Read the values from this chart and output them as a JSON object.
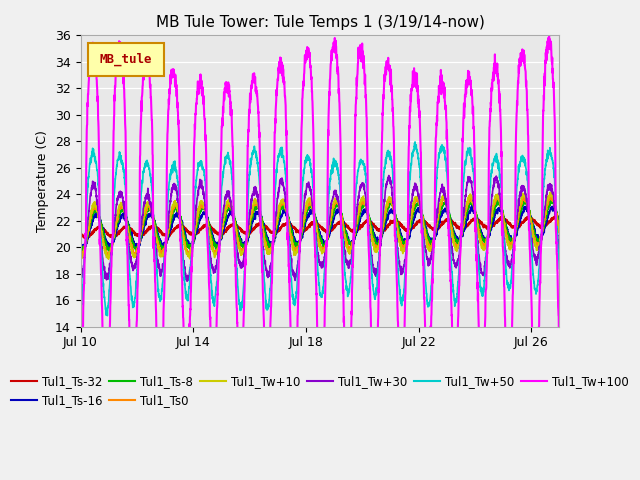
{
  "title": "MB Tule Tower: Tule Temps 1 (3/19/14-now)",
  "ylabel": "Temperature (C)",
  "xlabel": "",
  "ylim": [
    14,
    36
  ],
  "yticks": [
    14,
    16,
    18,
    20,
    22,
    24,
    26,
    28,
    30,
    32,
    34,
    36
  ],
  "xlim_start": 0,
  "xlim_end": 17,
  "xtick_positions": [
    0,
    4,
    8,
    12,
    16
  ],
  "xtick_labels": [
    "Jul 10",
    "Jul 14",
    "Jul 18",
    "Jul 22",
    "Jul 26"
  ],
  "background_color": "#e8e8e8",
  "plot_bg_color": "#e8e8e8",
  "fig_bg_color": "#f0f0f0",
  "series": [
    {
      "label": "Tul1_Ts-32",
      "color": "#cc0000",
      "lw": 1.5
    },
    {
      "label": "Tul1_Ts-16",
      "color": "#0000bb",
      "lw": 1.2
    },
    {
      "label": "Tul1_Ts-8",
      "color": "#00bb00",
      "lw": 1.2
    },
    {
      "label": "Tul1_Ts0",
      "color": "#ff8800",
      "lw": 1.2
    },
    {
      "label": "Tul1_Tw+10",
      "color": "#cccc00",
      "lw": 1.2
    },
    {
      "label": "Tul1_Tw+30",
      "color": "#8800cc",
      "lw": 1.2
    },
    {
      "label": "Tul1_Tw+50",
      "color": "#00cccc",
      "lw": 1.2
    },
    {
      "label": "Tul1_Tw+100",
      "color": "#ff00ff",
      "lw": 1.5
    }
  ],
  "legend_box_color": "#ffffaa",
  "legend_box_border": "#cc8800",
  "legend_text_color": "#aa0000",
  "legend_label": "MB_tule"
}
